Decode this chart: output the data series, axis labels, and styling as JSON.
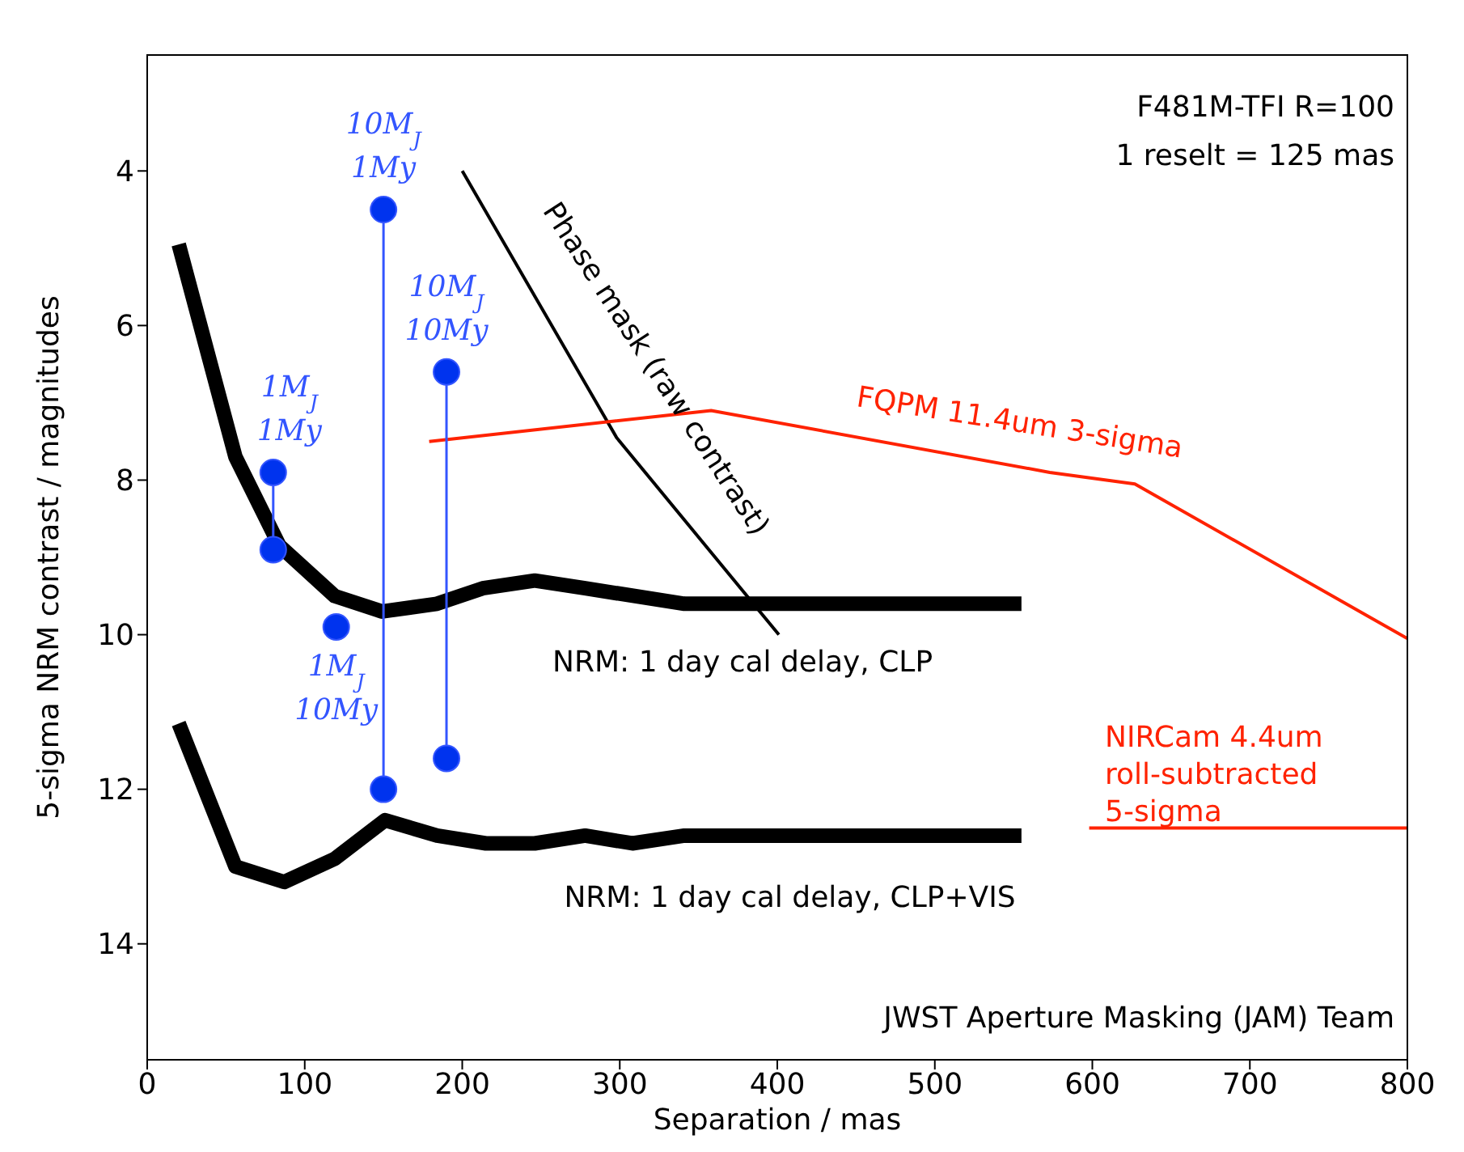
{
  "chart_data": {
    "type": "line",
    "xlabel": "Separation / mas",
    "ylabel": "5-sigma NRM contrast / magnitudes",
    "xlim": [
      0,
      800
    ],
    "xticks": [
      0,
      100,
      200,
      300,
      400,
      500,
      600,
      700,
      800
    ],
    "ylim": [
      15.5,
      2.5
    ],
    "yticks": [
      4,
      6,
      8,
      10,
      12,
      14
    ],
    "grid": false,
    "marker": "none",
    "line_style": "solid",
    "series": [
      {
        "color": "#000000",
        "x": [
          20,
          56,
          84,
          119,
          149,
          184,
          213,
          246,
          278,
          341,
          555
        ],
        "values": [
          4.95,
          7.7,
          8.85,
          9.5,
          9.7,
          9.6,
          9.4,
          9.3,
          9.4,
          9.6,
          9.6
        ]
      },
      {
        "color": "#000000",
        "x": [
          20,
          56,
          87,
          119,
          151,
          184,
          215,
          246,
          278,
          308,
          341,
          555
        ],
        "values": [
          11.15,
          13.0,
          13.2,
          12.9,
          12.4,
          12.6,
          12.7,
          12.7,
          12.6,
          12.7,
          12.6,
          12.6
        ]
      },
      {
        "color": "#000000",
        "x": [
          200,
          298,
          401
        ],
        "values": [
          4.0,
          7.45,
          10.0
        ]
      },
      {
        "color": "#ff2200",
        "x": [
          179,
          358,
          573,
          627,
          800
        ],
        "values": [
          7.5,
          7.1,
          7.9,
          8.05,
          10.05
        ]
      },
      {
        "color": "#ff2200",
        "x": [
          598,
          800
        ],
        "values": [
          12.5,
          12.5
        ]
      },
      {
        "color": "#3355ff",
        "marker": "circle",
        "x": [
          80,
          80
        ],
        "values": [
          7.9,
          8.9
        ]
      },
      {
        "color": "#3355ff",
        "marker": "circle",
        "x": [
          120
        ],
        "values": [
          9.9
        ]
      },
      {
        "color": "#3355ff",
        "marker": "circle",
        "x": [
          150,
          150
        ],
        "values": [
          4.5,
          12.0
        ]
      },
      {
        "color": "#3355ff",
        "marker": "circle",
        "x": [
          190,
          190
        ],
        "values": [
          6.6,
          11.6
        ]
      }
    ],
    "annotations": [
      {
        "text": "10M$_{J}$\n1My",
        "x": 150,
        "y": 4.5
      },
      {
        "text": "10M$_{J}$\n10My",
        "x": 190,
        "y": 6.6
      },
      {
        "text": "1M$_{J}$\n1My",
        "x": 80,
        "y": 7.9
      },
      {
        "text": "1M$_{J}$\n10My",
        "x": 120,
        "y": 9.9
      },
      "Phase mask (raw contrast)",
      "FQPM 11.4um 3-sigma",
      "NRM: 1 day cal delay, CLP",
      "NRM: 1 day cal delay, CLP+VIS",
      "NIRCam 4.4um\nroll-subtracted\n5-sigma",
      "F481M-TFI  R=100\n1 reselt = 125 mas",
      "JWST Aperture Masking (JAM) Team"
    ]
  }
}
